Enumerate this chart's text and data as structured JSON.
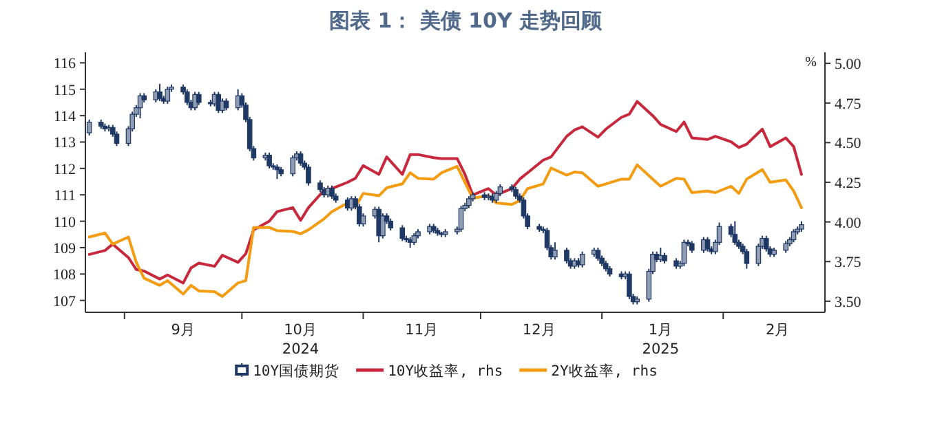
{
  "chart_data": {
    "type": "candlestick",
    "title": "图表 1： 美债 10Y 走势回顾",
    "y2label": "%",
    "legend": "bottom",
    "grid": false,
    "xlim": [
      "2024-08-22",
      "2025-02-27"
    ],
    "xticks": [
      {
        "value": "2024-09-01",
        "label": null
      },
      {
        "value": "2024-09-16",
        "label": "9月"
      },
      {
        "value": "2024-10-01",
        "label": null
      },
      {
        "value": "2024-10-16",
        "label": "10月\n2024"
      },
      {
        "value": "2024-11-01",
        "label": null
      },
      {
        "value": "2024-11-16",
        "label": "11月"
      },
      {
        "value": "2024-12-01",
        "label": null
      },
      {
        "value": "2024-12-16",
        "label": "12月"
      },
      {
        "value": "2025-01-01",
        "label": null
      },
      {
        "value": "2025-01-16",
        "label": "1月\n2025"
      },
      {
        "value": "2025-02-01",
        "label": null
      },
      {
        "value": "2025-02-15",
        "label": "2月"
      }
    ],
    "ylim": [
      106.55,
      116.4
    ],
    "yticks": [
      107,
      108,
      109,
      110,
      111,
      112,
      113,
      114,
      115,
      116
    ],
    "y2lim": [
      3.43,
      5.07
    ],
    "y2ticks": [
      {
        "value": 3.5,
        "label": "3.50"
      },
      {
        "value": 3.75,
        "label": "3.75"
      },
      {
        "value": 4.0,
        "label": "4.00"
      },
      {
        "value": 4.25,
        "label": "4.25"
      },
      {
        "value": 4.5,
        "label": "4.50"
      },
      {
        "value": 4.75,
        "label": "4.75"
      },
      {
        "value": 5.0,
        "label": "5.00"
      }
    ],
    "x": [
      "2024-08-23",
      "2024-08-26",
      "2024-08-27",
      "2024-08-28",
      "2024-08-29",
      "2024-08-30",
      "2024-09-02",
      "2024-09-03",
      "2024-09-04",
      "2024-09-05",
      "2024-09-06",
      "2024-09-09",
      "2024-09-10",
      "2024-09-11",
      "2024-09-12",
      "2024-09-13",
      "2024-09-16",
      "2024-09-17",
      "2024-09-18",
      "2024-09-19",
      "2024-09-20",
      "2024-09-23",
      "2024-09-24",
      "2024-09-25",
      "2024-09-26",
      "2024-09-27",
      "2024-09-30",
      "2024-10-01",
      "2024-10-02",
      "2024-10-03",
      "2024-10-04",
      "2024-10-07",
      "2024-10-08",
      "2024-10-09",
      "2024-10-10",
      "2024-10-11",
      "2024-10-14",
      "2024-10-15",
      "2024-10-16",
      "2024-10-17",
      "2024-10-18",
      "2024-10-21",
      "2024-10-22",
      "2024-10-23",
      "2024-10-24",
      "2024-10-25",
      "2024-10-28",
      "2024-10-29",
      "2024-10-30",
      "2024-10-31",
      "2024-11-01",
      "2024-11-04",
      "2024-11-05",
      "2024-11-06",
      "2024-11-07",
      "2024-11-08",
      "2024-11-11",
      "2024-11-12",
      "2024-11-13",
      "2024-11-14",
      "2024-11-15",
      "2024-11-18",
      "2024-11-19",
      "2024-11-20",
      "2024-11-21",
      "2024-11-22",
      "2024-11-25",
      "2024-11-26",
      "2024-11-27",
      "2024-11-28",
      "2024-11-29",
      "2024-12-02",
      "2024-12-03",
      "2024-12-04",
      "2024-12-05",
      "2024-12-06",
      "2024-12-09",
      "2024-12-10",
      "2024-12-11",
      "2024-12-12",
      "2024-12-13",
      "2024-12-16",
      "2024-12-17",
      "2024-12-18",
      "2024-12-19",
      "2024-12-20",
      "2024-12-23",
      "2024-12-24",
      "2024-12-25",
      "2024-12-26",
      "2024-12-27",
      "2024-12-30",
      "2024-12-31",
      "2025-01-01",
      "2025-01-02",
      "2025-01-03",
      "2025-01-06",
      "2025-01-07",
      "2025-01-08",
      "2025-01-09",
      "2025-01-10",
      "2025-01-13",
      "2025-01-14",
      "2025-01-15",
      "2025-01-16",
      "2025-01-17",
      "2025-01-20",
      "2025-01-21",
      "2025-01-22",
      "2025-01-23",
      "2025-01-24",
      "2025-01-27",
      "2025-01-28",
      "2025-01-29",
      "2025-01-30",
      "2025-01-31",
      "2025-02-03",
      "2025-02-04",
      "2025-02-05",
      "2025-02-06",
      "2025-02-07",
      "2025-02-10",
      "2025-02-11",
      "2025-02-12",
      "2025-02-13",
      "2025-02-14",
      "2025-02-17",
      "2025-02-18",
      "2025-02-19",
      "2025-02-20",
      "2025-02-21"
    ],
    "series": [
      {
        "name": "10Y国债期货",
        "color": "#1f3864",
        "ohlc": [
          [
            113.35,
            113.85,
            113.25,
            113.75
          ],
          [
            113.75,
            113.85,
            113.5,
            113.6
          ],
          [
            113.6,
            113.7,
            113.4,
            113.5
          ],
          [
            113.5,
            113.65,
            113.4,
            113.55
          ],
          [
            113.55,
            113.65,
            113.2,
            113.3
          ],
          [
            113.3,
            113.4,
            112.85,
            112.95
          ],
          [
            112.95,
            113.6,
            112.85,
            113.5
          ],
          [
            113.5,
            114.15,
            113.4,
            114.05
          ],
          [
            114.05,
            114.4,
            113.95,
            114.3
          ],
          [
            114.3,
            114.85,
            113.9,
            114.75
          ],
          [
            114.75,
            114.85,
            114.5,
            114.6
          ],
          [
            114.6,
            115.0,
            114.5,
            114.9
          ],
          [
            114.9,
            115.2,
            114.55,
            114.65
          ],
          [
            114.65,
            114.75,
            114.45,
            114.55
          ],
          [
            114.55,
            115.1,
            114.45,
            115.0
          ],
          [
            115.0,
            115.18,
            114.9,
            115.08
          ],
          [
            115.08,
            115.18,
            114.8,
            114.9
          ],
          [
            114.9,
            115.0,
            114.4,
            114.5
          ],
          [
            114.5,
            114.6,
            114.2,
            114.3
          ],
          [
            114.3,
            114.9,
            114.2,
            114.8
          ],
          [
            114.8,
            114.9,
            114.4,
            114.5
          ],
          [
            114.5,
            114.6,
            114.35,
            114.45
          ],
          [
            114.45,
            114.9,
            114.35,
            114.8
          ],
          [
            114.8,
            114.9,
            114.1,
            114.2
          ],
          [
            114.2,
            114.65,
            114.1,
            114.55
          ],
          [
            114.55,
            114.65,
            114.2,
            114.3
          ],
          [
            114.3,
            115.0,
            114.2,
            114.75
          ],
          [
            114.75,
            114.85,
            114.3,
            114.4
          ],
          [
            114.4,
            114.5,
            113.75,
            113.85
          ],
          [
            113.85,
            113.95,
            112.65,
            112.75
          ],
          [
            112.75,
            112.85,
            112.3,
            112.4
          ],
          [
            112.4,
            112.6,
            112.3,
            112.5
          ],
          [
            112.5,
            112.6,
            112.0,
            112.1
          ],
          [
            112.1,
            112.2,
            111.95,
            112.05
          ],
          [
            112.05,
            112.15,
            111.6,
            111.95
          ],
          [
            111.95,
            112.05,
            111.7,
            111.8
          ],
          [
            111.8,
            112.5,
            111.7,
            112.4
          ],
          [
            112.4,
            112.65,
            112.3,
            112.55
          ],
          [
            112.55,
            112.65,
            112.1,
            112.2
          ],
          [
            112.2,
            112.3,
            111.95,
            112.05
          ],
          [
            112.05,
            112.15,
            111.35,
            111.45
          ],
          [
            111.45,
            111.55,
            111.1,
            111.2
          ],
          [
            111.2,
            111.3,
            110.9,
            111.0
          ],
          [
            111.0,
            111.35,
            110.9,
            111.25
          ],
          [
            111.25,
            111.35,
            110.85,
            110.95
          ],
          [
            110.95,
            111.05,
            110.7,
            110.8
          ],
          [
            110.8,
            110.9,
            110.4,
            110.5
          ],
          [
            110.5,
            110.95,
            110.4,
            110.85
          ],
          [
            110.85,
            110.95,
            110.45,
            110.55
          ],
          [
            110.55,
            110.65,
            109.8,
            109.9
          ],
          [
            109.9,
            110.3,
            109.8,
            110.2
          ],
          [
            110.2,
            110.55,
            110.1,
            110.45
          ],
          [
            110.45,
            110.55,
            109.2,
            109.45
          ],
          [
            109.45,
            110.3,
            109.35,
            110.2
          ],
          [
            110.2,
            110.3,
            109.9,
            110.0
          ],
          [
            110.0,
            110.1,
            109.65,
            109.75
          ],
          [
            109.75,
            109.85,
            109.25,
            109.35
          ],
          [
            109.35,
            109.45,
            109.2,
            109.3
          ],
          [
            109.3,
            109.4,
            109.0,
            109.2
          ],
          [
            109.2,
            109.55,
            109.1,
            109.45
          ],
          [
            109.45,
            109.7,
            109.35,
            109.6
          ],
          [
            109.6,
            109.9,
            109.5,
            109.8
          ],
          [
            109.8,
            109.9,
            109.55,
            109.65
          ],
          [
            109.65,
            109.75,
            109.45,
            109.55
          ],
          [
            109.55,
            109.6,
            109.4,
            109.5
          ],
          [
            109.5,
            109.7,
            109.4,
            109.6
          ],
          [
            109.6,
            109.8,
            109.5,
            109.7
          ],
          [
            109.7,
            110.58,
            109.6,
            110.48
          ],
          [
            110.48,
            110.7,
            110.38,
            110.6
          ],
          [
            110.6,
            110.95,
            110.5,
            110.85
          ],
          [
            110.85,
            111.1,
            110.75,
            111.0
          ],
          [
            111.0,
            111.1,
            110.8,
            110.9
          ],
          [
            110.9,
            111.05,
            110.8,
            110.95
          ],
          [
            110.95,
            111.05,
            110.7,
            110.8
          ],
          [
            110.8,
            111.15,
            110.7,
            111.05
          ],
          [
            111.05,
            111.4,
            110.95,
            111.3
          ],
          [
            111.3,
            111.4,
            111.1,
            111.2
          ],
          [
            111.2,
            111.3,
            110.85,
            110.95
          ],
          [
            110.95,
            111.05,
            110.7,
            110.8
          ],
          [
            110.8,
            110.9,
            110.1,
            110.2
          ],
          [
            110.2,
            110.3,
            109.7,
            109.8
          ],
          [
            109.8,
            109.9,
            109.6,
            109.7
          ],
          [
            109.7,
            109.8,
            109.55,
            109.65
          ],
          [
            109.65,
            109.75,
            108.9,
            109.0
          ],
          [
            109.0,
            109.1,
            108.55,
            108.65
          ],
          [
            108.65,
            109.2,
            108.55,
            108.9
          ],
          [
            108.9,
            109.0,
            108.4,
            108.5
          ],
          [
            108.5,
            108.6,
            108.2,
            108.3
          ],
          [
            108.3,
            108.6,
            108.2,
            108.5
          ],
          [
            108.5,
            108.6,
            108.25,
            108.35
          ],
          [
            108.35,
            108.85,
            108.25,
            108.75
          ],
          [
            108.75,
            109.0,
            108.65,
            108.9
          ],
          [
            108.9,
            109.0,
            108.5,
            108.6
          ],
          [
            108.6,
            108.7,
            108.3,
            108.4
          ],
          [
            108.4,
            108.5,
            108.1,
            108.2
          ],
          [
            108.2,
            108.3,
            107.9,
            108.0
          ],
          [
            108.0,
            108.1,
            107.8,
            107.9
          ],
          [
            107.9,
            108.1,
            107.8,
            108.0
          ],
          [
            108.0,
            108.1,
            107.05,
            107.15
          ],
          [
            107.15,
            107.25,
            106.85,
            106.95
          ],
          [
            106.95,
            107.15,
            106.85,
            107.05
          ],
          [
            107.05,
            108.2,
            106.95,
            108.1
          ],
          [
            108.1,
            108.85,
            108.0,
            108.75
          ],
          [
            108.75,
            108.85,
            108.45,
            108.55
          ],
          [
            108.55,
            109.0,
            108.45,
            108.7
          ],
          [
            108.7,
            108.8,
            108.4,
            108.5
          ],
          [
            108.5,
            108.6,
            108.2,
            108.3
          ],
          [
            108.3,
            108.5,
            108.2,
            108.4
          ],
          [
            108.4,
            109.3,
            108.3,
            109.2
          ],
          [
            109.2,
            109.3,
            109.05,
            109.15
          ],
          [
            109.15,
            109.25,
            108.8,
            108.9
          ],
          [
            108.9,
            109.4,
            108.8,
            109.3
          ],
          [
            109.3,
            109.4,
            108.85,
            108.95
          ],
          [
            108.95,
            109.05,
            108.75,
            108.85
          ],
          [
            108.85,
            109.3,
            108.75,
            109.2
          ],
          [
            109.2,
            109.95,
            109.1,
            109.8
          ],
          [
            109.8,
            109.9,
            109.4,
            109.5
          ],
          [
            109.5,
            110.0,
            109.1,
            109.2
          ],
          [
            109.2,
            109.3,
            108.95,
            109.05
          ],
          [
            109.05,
            109.15,
            108.75,
            108.85
          ],
          [
            108.85,
            108.95,
            108.2,
            108.4
          ],
          [
            108.4,
            109.15,
            108.3,
            109.05
          ],
          [
            109.05,
            109.45,
            108.95,
            109.35
          ],
          [
            109.35,
            109.45,
            108.85,
            108.95
          ],
          [
            108.95,
            109.05,
            108.65,
            108.75
          ],
          [
            108.75,
            109.0,
            108.65,
            108.9
          ],
          [
            108.9,
            109.25,
            108.8,
            109.15
          ],
          [
            109.15,
            109.4,
            109.05,
            109.3
          ],
          [
            109.3,
            109.7,
            109.2,
            109.6
          ],
          [
            109.6,
            109.8,
            109.5,
            109.7
          ],
          [
            109.7,
            110.0,
            109.6,
            109.87
          ]
        ]
      },
      {
        "type": "line",
        "name": "10Y收益率, rhs",
        "color": "#c8283c",
        "axis": "y2",
        "x": [
          "2024-08-23",
          "2024-08-27",
          "2024-08-29",
          "2024-09-02",
          "2024-09-04",
          "2024-09-06",
          "2024-09-10",
          "2024-09-12",
          "2024-09-16",
          "2024-09-18",
          "2024-09-20",
          "2024-09-24",
          "2024-09-26",
          "2024-09-30",
          "2024-10-02",
          "2024-10-04",
          "2024-10-08",
          "2024-10-10",
          "2024-10-14",
          "2024-10-16",
          "2024-10-18",
          "2024-10-22",
          "2024-10-24",
          "2024-10-28",
          "2024-10-30",
          "2024-11-01",
          "2024-11-05",
          "2024-11-07",
          "2024-11-11",
          "2024-11-13",
          "2024-11-15",
          "2024-11-19",
          "2024-11-21",
          "2024-11-25",
          "2024-11-27",
          "2024-11-29",
          "2024-12-03",
          "2024-12-05",
          "2024-12-09",
          "2024-12-11",
          "2024-12-13",
          "2024-12-17",
          "2024-12-19",
          "2024-12-23",
          "2024-12-25",
          "2024-12-27",
          "2024-12-31",
          "2025-01-02",
          "2025-01-06",
          "2025-01-08",
          "2025-01-10",
          "2025-01-14",
          "2025-01-16",
          "2025-01-20",
          "2025-01-22",
          "2025-01-24",
          "2025-01-28",
          "2025-01-30",
          "2025-02-03",
          "2025-02-05",
          "2025-02-07",
          "2025-02-11",
          "2025-02-13",
          "2025-02-17",
          "2025-02-19",
          "2025-02-21"
        ],
        "values": [
          3.795,
          3.82,
          3.86,
          3.775,
          3.7,
          3.69,
          3.64,
          3.665,
          3.615,
          3.71,
          3.74,
          3.72,
          3.79,
          3.745,
          3.8,
          3.95,
          4.005,
          4.065,
          4.09,
          4.01,
          4.09,
          4.2,
          4.21,
          4.25,
          4.275,
          4.355,
          4.3,
          4.41,
          4.3,
          4.425,
          4.425,
          4.405,
          4.4,
          4.4,
          4.3,
          4.17,
          4.21,
          4.17,
          4.21,
          4.27,
          4.31,
          4.39,
          4.41,
          4.54,
          4.58,
          4.6,
          4.535,
          4.585,
          4.66,
          4.68,
          4.76,
          4.67,
          4.615,
          4.57,
          4.63,
          4.53,
          4.52,
          4.54,
          4.505,
          4.47,
          4.49,
          4.585,
          4.475,
          4.53,
          4.475,
          4.3
        ]
      },
      {
        "type": "line",
        "name": "2Y收益率, rhs",
        "color": "#f39c12",
        "axis": "y2",
        "x": [
          "2024-08-23",
          "2024-08-27",
          "2024-08-29",
          "2024-09-02",
          "2024-09-04",
          "2024-09-06",
          "2024-09-10",
          "2024-09-12",
          "2024-09-16",
          "2024-09-18",
          "2024-09-20",
          "2024-09-24",
          "2024-09-26",
          "2024-09-30",
          "2024-10-02",
          "2024-10-04",
          "2024-10-08",
          "2024-10-10",
          "2024-10-14",
          "2024-10-16",
          "2024-10-18",
          "2024-10-22",
          "2024-10-24",
          "2024-10-28",
          "2024-10-30",
          "2024-11-01",
          "2024-11-05",
          "2024-11-07",
          "2024-11-11",
          "2024-11-13",
          "2024-11-15",
          "2024-11-19",
          "2024-11-21",
          "2024-11-25",
          "2024-11-27",
          "2024-11-29",
          "2024-12-03",
          "2024-12-05",
          "2024-12-09",
          "2024-12-11",
          "2024-12-13",
          "2024-12-17",
          "2024-12-19",
          "2024-12-23",
          "2024-12-25",
          "2024-12-27",
          "2024-12-31",
          "2025-01-02",
          "2025-01-06",
          "2025-01-08",
          "2025-01-10",
          "2025-01-14",
          "2025-01-16",
          "2025-01-20",
          "2025-01-22",
          "2025-01-24",
          "2025-01-28",
          "2025-01-30",
          "2025-02-03",
          "2025-02-05",
          "2025-02-07",
          "2025-02-11",
          "2025-02-13",
          "2025-02-17",
          "2025-02-19",
          "2025-02-21"
        ],
        "values": [
          3.905,
          3.93,
          3.86,
          3.905,
          3.745,
          3.645,
          3.6,
          3.63,
          3.545,
          3.6,
          3.565,
          3.56,
          3.53,
          3.615,
          3.63,
          3.965,
          3.965,
          3.945,
          3.94,
          3.925,
          3.95,
          4.02,
          4.065,
          4.12,
          4.095,
          4.18,
          4.165,
          4.215,
          4.24,
          4.31,
          4.275,
          4.27,
          4.31,
          4.35,
          4.25,
          4.15,
          4.165,
          4.12,
          4.11,
          4.135,
          4.21,
          4.24,
          4.34,
          4.295,
          4.315,
          4.31,
          4.225,
          4.24,
          4.27,
          4.27,
          4.36,
          4.27,
          4.225,
          4.275,
          4.27,
          4.185,
          4.195,
          4.185,
          4.225,
          4.18,
          4.27,
          4.33,
          4.25,
          4.265,
          4.195,
          4.09
        ]
      }
    ]
  }
}
